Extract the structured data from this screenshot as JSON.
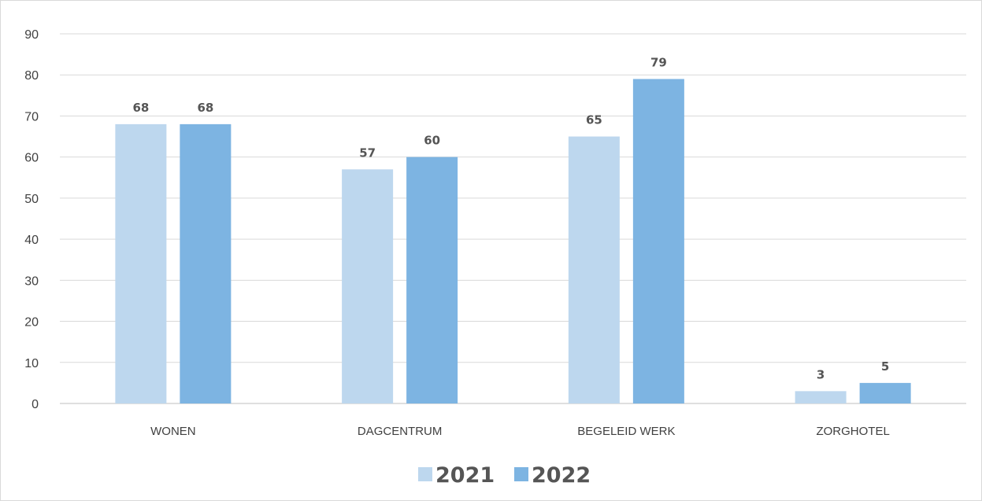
{
  "chart_data": {
    "type": "bar",
    "categories": [
      "WONEN",
      "DAGCENTRUM",
      "BEGELEID WERK",
      "ZORGHOTEL"
    ],
    "series": [
      {
        "name": "2021",
        "values": [
          68,
          57,
          65,
          3
        ],
        "color": "#bdd7ee"
      },
      {
        "name": "2022",
        "values": [
          68,
          60,
          79,
          5
        ],
        "color": "#7db4e2"
      }
    ],
    "ylim": [
      0,
      90
    ],
    "yticks": [
      0,
      10,
      20,
      30,
      40,
      50,
      60,
      70,
      80,
      90
    ],
    "grid": true,
    "legend": "bottom",
    "gridColor": "#d9d9d9",
    "axisColor": "#bfbfbf"
  }
}
